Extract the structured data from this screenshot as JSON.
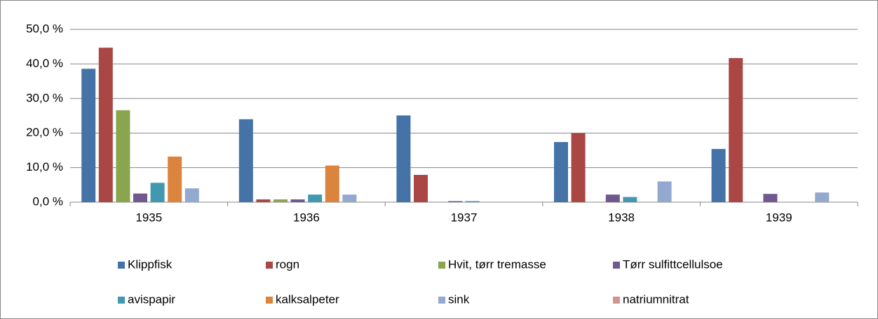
{
  "chart_data": {
    "type": "bar",
    "categories": [
      "1935",
      "1936",
      "1937",
      "1938",
      "1939"
    ],
    "series": [
      {
        "name": "Klippfisk",
        "color": "#4572a7",
        "values": [
          38.6,
          24.0,
          25.1,
          17.4,
          15.4
        ]
      },
      {
        "name": "rogn",
        "color": "#aa4643",
        "values": [
          44.7,
          0.8,
          7.9,
          20.0,
          41.7
        ]
      },
      {
        "name": "Hvit, tørr tremasse",
        "color": "#89a54e",
        "values": [
          26.6,
          0.8,
          0,
          0,
          0
        ]
      },
      {
        "name": "Tørr sulfittcellulsoe",
        "color": "#71588f",
        "values": [
          2.5,
          0.8,
          0.3,
          2.2,
          2.4
        ]
      },
      {
        "name": "avispapir",
        "color": "#4198af",
        "values": [
          5.6,
          2.2,
          0.3,
          1.5,
          0
        ]
      },
      {
        "name": "kalksalpeter",
        "color": "#db843d",
        "values": [
          13.2,
          10.6,
          0,
          0,
          0
        ]
      },
      {
        "name": "sink",
        "color": "#93a9cf",
        "values": [
          4.0,
          2.2,
          0,
          6.0,
          2.8
        ]
      },
      {
        "name": "natriumnitrat",
        "color": "#d19392",
        "values": [
          0,
          0,
          0,
          0,
          0
        ]
      }
    ],
    "ylim": [
      0,
      50
    ],
    "yticks": [
      {
        "value": 0,
        "label": "0,0 %"
      },
      {
        "value": 10,
        "label": "10,0 %"
      },
      {
        "value": 20,
        "label": "20,0 %"
      },
      {
        "value": 30,
        "label": "30,0 %"
      },
      {
        "value": 40,
        "label": "40,0 %"
      },
      {
        "value": 50,
        "label": "50,0 %"
      }
    ],
    "grid": true,
    "legend": "bottom"
  }
}
